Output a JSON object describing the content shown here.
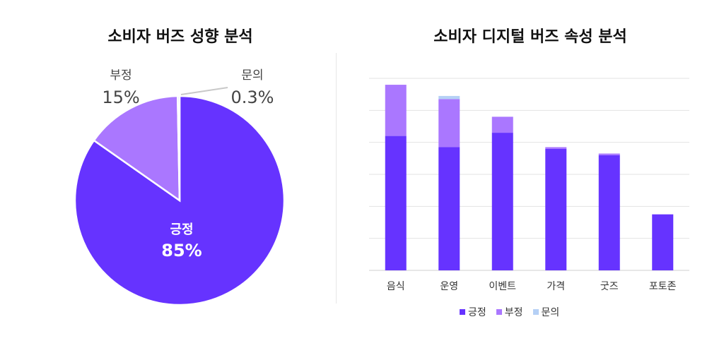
{
  "chart_data": [
    {
      "type": "pie",
      "title": "소비자 버즈 성향 분석",
      "slices": [
        {
          "label": "긍정",
          "value": 85,
          "display": "85%",
          "color": "#6633ff"
        },
        {
          "label": "부정",
          "value": 15,
          "display": "15%",
          "color": "#aa77ff"
        },
        {
          "label": "문의",
          "value": 0.3,
          "display": "0.3%",
          "color": "#b5d0f5"
        }
      ]
    },
    {
      "type": "bar",
      "stacked": true,
      "title": "소비자 디지털 버즈 속성 분석",
      "categories": [
        "음식",
        "운영",
        "이벤트",
        "가격",
        "굿즈",
        "포토존"
      ],
      "series": [
        {
          "name": "긍정",
          "color": "#6633ff",
          "values": [
            42,
            38.5,
            43,
            38,
            36,
            17.5
          ]
        },
        {
          "name": "부정",
          "color": "#aa77ff",
          "values": [
            16,
            15,
            5,
            0.5,
            0.5,
            0
          ]
        },
        {
          "name": "문의",
          "color": "#b5d0f5",
          "values": [
            0,
            1,
            0,
            0,
            0,
            0
          ]
        }
      ],
      "ylim": [
        0,
        60
      ],
      "yticks": [
        0,
        10,
        20,
        30,
        40,
        50,
        60
      ],
      "ytick_labels_shown": false,
      "grid": true,
      "legend_position": "bottom"
    }
  ]
}
